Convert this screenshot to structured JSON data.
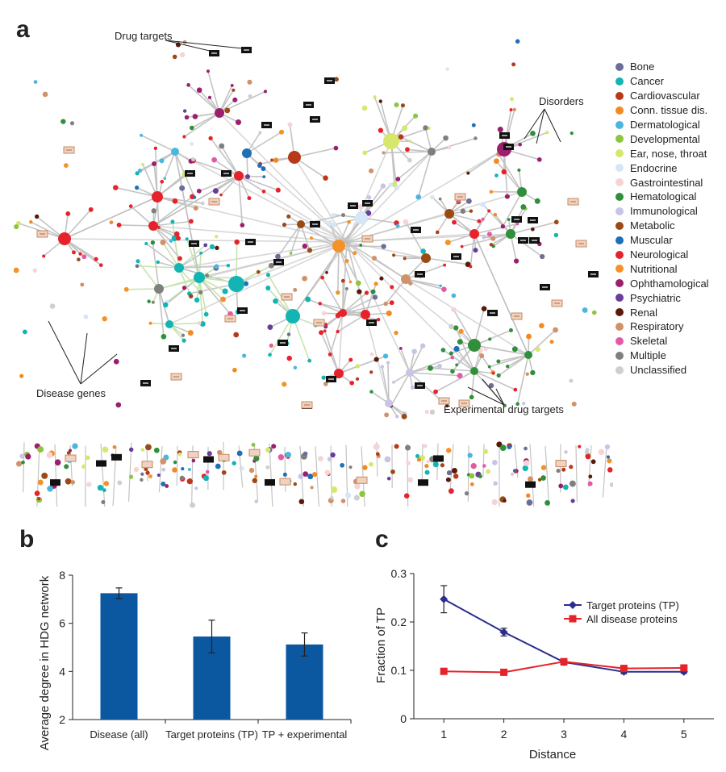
{
  "panel_a": {
    "letter": "a",
    "annotations": {
      "drug_targets": "Drug targets",
      "disorders": "Disorders",
      "disease_genes": "Disease genes",
      "experimental_drug_targets": "Experimental drug targets"
    },
    "legend": [
      {
        "label": "Bone",
        "color": "#6b6f98"
      },
      {
        "label": "Cancer",
        "color": "#12b4b4"
      },
      {
        "label": "Cardiovascular",
        "color": "#b8391a"
      },
      {
        "label": "Conn. tissue dis.",
        "color": "#f28a23"
      },
      {
        "label": "Dermatological",
        "color": "#4bb6de"
      },
      {
        "label": "Developmental",
        "color": "#8cc63f"
      },
      {
        "label": "Ear, nose, throat",
        "color": "#d5e86c"
      },
      {
        "label": "Endocrine",
        "color": "#d7e6f6"
      },
      {
        "label": "Gastrointestinal",
        "color": "#f6d4d4"
      },
      {
        "label": "Hematological",
        "color": "#2f8f3a"
      },
      {
        "label": "Immunological",
        "color": "#c7c4e6"
      },
      {
        "label": "Metabolic",
        "color": "#9b4a14"
      },
      {
        "label": "Muscular",
        "color": "#1e6fb8"
      },
      {
        "label": "Neurological",
        "color": "#e6232b"
      },
      {
        "label": "Nutritional",
        "color": "#f4922a"
      },
      {
        "label": "Ophthamological",
        "color": "#9c1f6e"
      },
      {
        "label": "Psychiatric",
        "color": "#6a3d9a"
      },
      {
        "label": "Renal",
        "color": "#5a1a0a"
      },
      {
        "label": "Respiratory",
        "color": "#d0926a"
      },
      {
        "label": "Skeletal",
        "color": "#e35aa4"
      },
      {
        "label": "Multiple",
        "color": "#7f7f7f"
      },
      {
        "label": "Unclassified",
        "color": "#cfcfcf"
      }
    ]
  },
  "panel_b": {
    "letter": "b",
    "ylabel": "Average degree in HDG network"
  },
  "panel_c": {
    "letter": "c",
    "ylabel": "Fraction of TP",
    "xlabel": "Distance"
  },
  "chart_data": [
    {
      "type": "bar",
      "title": "",
      "xlabel": "",
      "ylabel": "Average degree in HDG network",
      "categories": [
        "Disease (all)",
        "Target proteins (TP)",
        "TP + experimental"
      ],
      "values": [
        7.25,
        5.45,
        5.12
      ],
      "errors": [
        0.22,
        0.68,
        0.48
      ],
      "ylim": [
        2,
        8
      ],
      "yticks": [
        2,
        4,
        6,
        8
      ],
      "bar_color": "#0b57a0"
    },
    {
      "type": "line",
      "title": "",
      "xlabel": "Distance",
      "ylabel": "Fraction of TP",
      "x": [
        1,
        2,
        3,
        4,
        5
      ],
      "xlim": [
        0.5,
        5.5
      ],
      "ylim": [
        0,
        0.3
      ],
      "yticks": [
        0,
        0.1,
        0.2,
        0.3
      ],
      "legend_position": "upper-right",
      "series": [
        {
          "name": "Target proteins (TP)",
          "values": [
            0.247,
            0.179,
            0.117,
            0.097,
            0.097
          ],
          "errors": [
            0.028,
            0.008,
            0.006,
            0.004,
            0.003
          ],
          "color": "#2b2e8f",
          "marker": "diamond"
        },
        {
          "name": "All disease proteins",
          "values": [
            0.098,
            0.096,
            0.118,
            0.104,
            0.105
          ],
          "errors": [
            0.002,
            0.002,
            0.003,
            0.002,
            0.002
          ],
          "color": "#e4232b",
          "marker": "square"
        }
      ]
    }
  ]
}
